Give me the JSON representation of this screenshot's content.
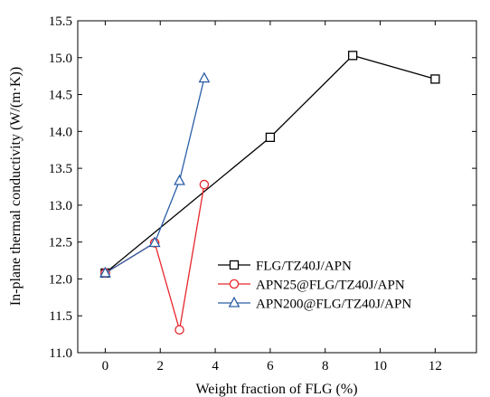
{
  "chart_data": {
    "type": "line",
    "xlabel": "Weight fraction of FLG (%)",
    "ylabel": "In-plane thermal conductivity (W/(m·K))",
    "xlim": [
      -1,
      13.5
    ],
    "ylim": [
      11.0,
      15.5
    ],
    "x_ticks": [
      0,
      2,
      4,
      6,
      8,
      10,
      12
    ],
    "x_tick_labels": [
      "0",
      "2",
      "4",
      "6",
      "8",
      "10",
      "12"
    ],
    "y_ticks": [
      11.0,
      11.5,
      12.0,
      12.5,
      13.0,
      13.5,
      14.0,
      14.5,
      15.0,
      15.5
    ],
    "y_tick_labels": [
      "11.0",
      "11.5",
      "12.0",
      "12.5",
      "13.0",
      "13.5",
      "14.0",
      "14.5",
      "15.0",
      "15.5"
    ],
    "grid": false,
    "legend_position": "bottom-right",
    "series": [
      {
        "name": "FLG/TZ40J/APN",
        "marker": "square",
        "color": "#000000",
        "x": [
          0,
          6,
          9,
          12
        ],
        "y": [
          12.08,
          13.92,
          15.03,
          14.71
        ]
      },
      {
        "name": "APN25@FLG/TZ40J/APN",
        "marker": "circle",
        "color": "#e8262b",
        "x": [
          0,
          1.8,
          2.7,
          3.6
        ],
        "y": [
          12.08,
          12.49,
          11.31,
          13.28
        ]
      },
      {
        "name": "APN200@FLG/TZ40J/APN",
        "marker": "triangle",
        "color": "#2a5ea6",
        "x": [
          0,
          1.8,
          2.7,
          3.6
        ],
        "y": [
          12.08,
          12.49,
          13.33,
          14.72
        ]
      }
    ]
  }
}
